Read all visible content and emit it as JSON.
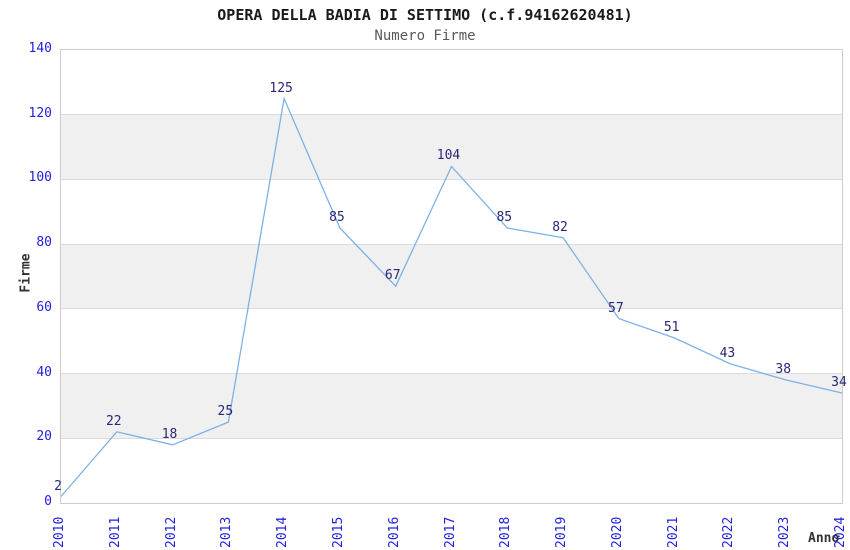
{
  "title": "OPERA DELLA BADIA DI SETTIMO (c.f.94162620481)",
  "subtitle": "Numero Firme",
  "chart_data": {
    "type": "line",
    "x": [
      2010,
      2011,
      2012,
      2013,
      2014,
      2015,
      2016,
      2017,
      2018,
      2019,
      2020,
      2021,
      2022,
      2023,
      2024
    ],
    "values": [
      2,
      22,
      18,
      25,
      125,
      85,
      67,
      104,
      85,
      82,
      57,
      51,
      43,
      38,
      34
    ],
    "title": "OPERA DELLA BADIA DI SETTIMO (c.f.94162620481)",
    "subtitle": "Numero Firme",
    "xlabel": "Anno",
    "ylabel": "Firme",
    "ylim": [
      0,
      140
    ],
    "y_ticks": [
      0,
      20,
      40,
      60,
      80,
      100,
      120,
      140
    ],
    "grid": "horizontal-bands-alternating",
    "legend": "none",
    "colors": {
      "line": "#7db1e6",
      "data_label": "#282878",
      "tick_label": "#2222dd",
      "axis_title": "#333333",
      "band_white": "#ffffff",
      "band_gray": "#f0f0f0",
      "gridline": "#dcdcdc",
      "plot_border": "#cccccc"
    }
  }
}
